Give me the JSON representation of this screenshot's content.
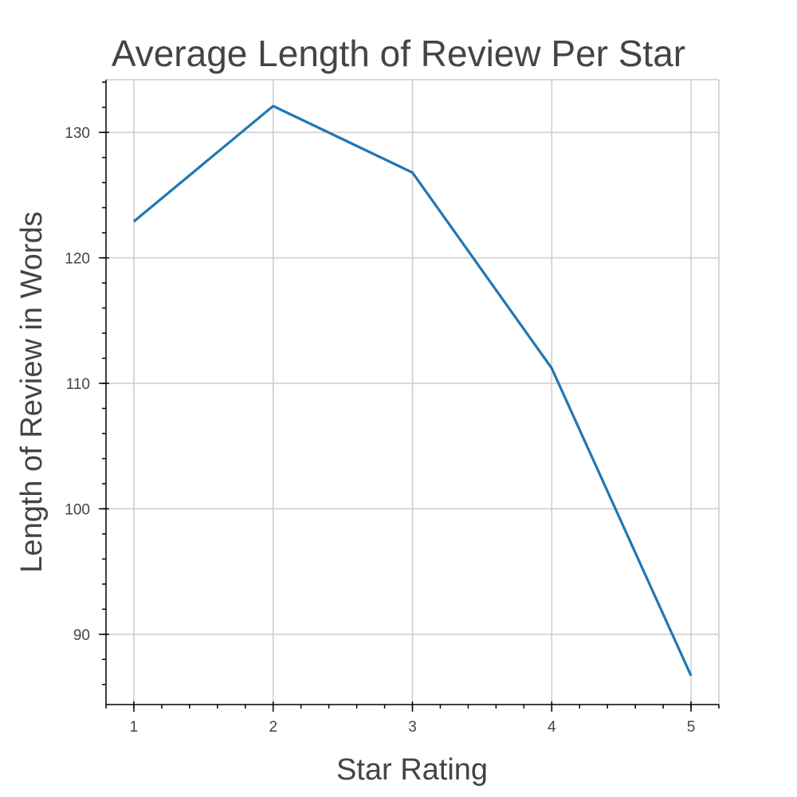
{
  "chart_data": {
    "type": "line",
    "title": "Average Length of Review Per Star",
    "xlabel": "Star Rating",
    "ylabel": "Length of Review in Words",
    "x": [
      1,
      2,
      3,
      4,
      5
    ],
    "series": [
      {
        "values": [
          122.9,
          132.1,
          126.8,
          111.2,
          86.7
        ],
        "color": "#1f77b4"
      }
    ],
    "xlim": [
      0.8,
      5.2
    ],
    "ylim": [
      84.4,
      134.2
    ],
    "x_ticks": [
      1,
      2,
      3,
      4,
      5
    ],
    "x_tick_labels": [
      "1",
      "2",
      "3",
      "4",
      "5"
    ],
    "y_ticks": [
      90,
      100,
      110,
      120,
      130
    ],
    "y_tick_labels": [
      "90",
      "100",
      "110",
      "120",
      "130"
    ],
    "grid": true,
    "legend": "none"
  }
}
